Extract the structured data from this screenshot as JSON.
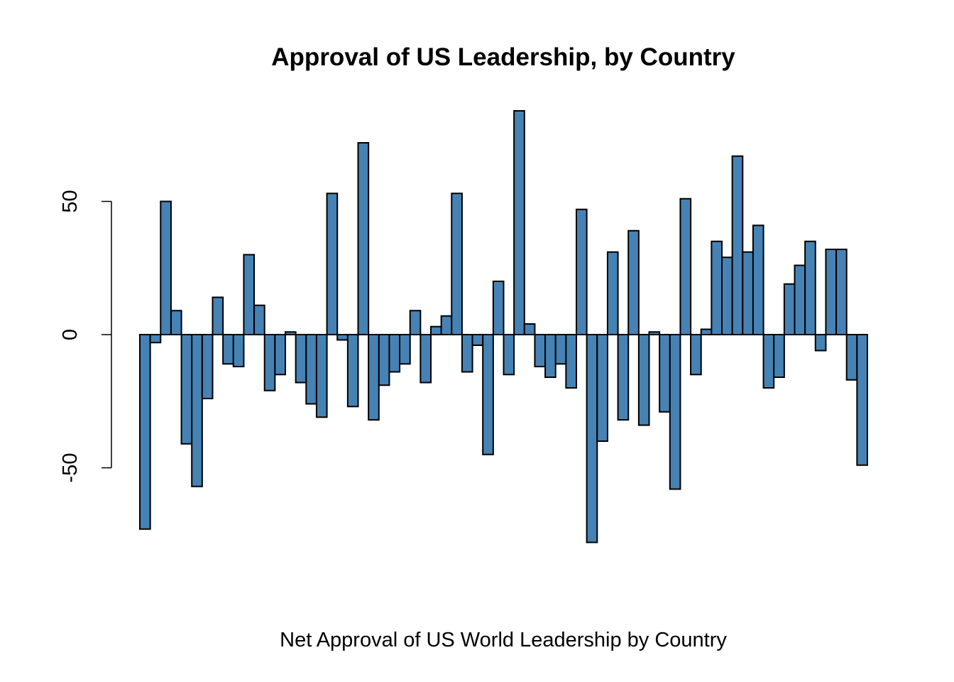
{
  "chart_data": {
    "type": "bar",
    "title": "Approval of US Leadership, by Country",
    "xlabel": "Net Approval of US World Leadership by Country",
    "ylabel": "",
    "ylim": [
      -87,
      87
    ],
    "yticks": [
      -50,
      0,
      50
    ],
    "ytick_labels": [
      "-50",
      "0",
      "50"
    ],
    "bar_color": "#4682B4",
    "border_color": "#000000",
    "values": [
      -73,
      -3,
      50,
      9,
      -41,
      -57,
      -24,
      14,
      -11,
      -12,
      30,
      11,
      -21,
      -15,
      1,
      -18,
      -26,
      -31,
      53,
      -2,
      -27,
      72,
      -32,
      -19,
      -14,
      -11,
      9,
      -18,
      3,
      7,
      53,
      -14,
      -4,
      -45,
      20,
      -15,
      84,
      4,
      -12,
      -16,
      -11,
      -20,
      47,
      -78,
      -40,
      31,
      -32,
      39,
      -34,
      1,
      -29,
      -58,
      51,
      -15,
      2,
      35,
      29,
      67,
      31,
      41,
      -20,
      -16,
      19,
      26,
      35,
      -6,
      32,
      32,
      -17,
      -49
    ]
  }
}
